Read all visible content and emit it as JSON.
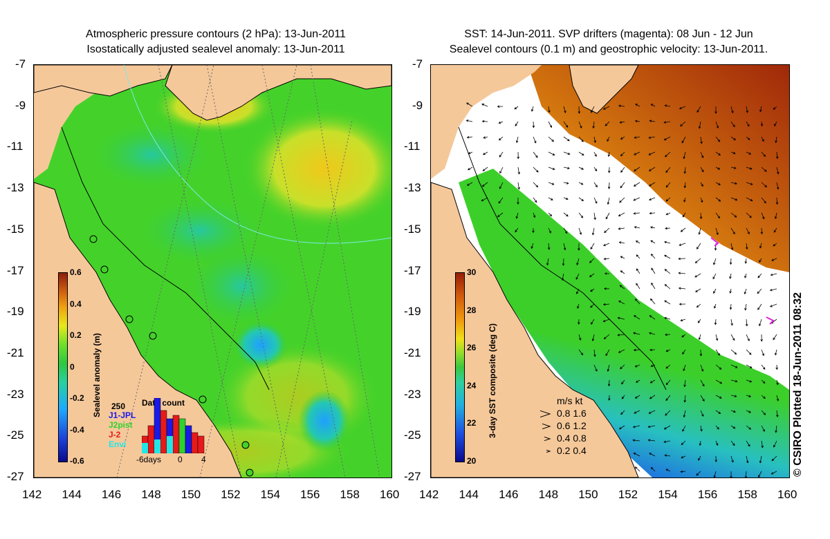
{
  "left_panel": {
    "title_line1": "Atmospheric pressure contours (2 hPa): 13-Jun-2011",
    "title_line2": "Isostatically adjusted sealevel anomaly: 13-Jun-2011",
    "colorbar": {
      "label": "Sealevel anomaly (m)",
      "ticks": [
        "0.6",
        "0.4",
        "0.2",
        "0",
        "-0.2",
        "-0.4",
        "-0.6"
      ],
      "colors": [
        "#0a0a8c",
        "#1e40d8",
        "#1eaaff",
        "#26d0a0",
        "#2ec840",
        "#6ee02a",
        "#e8e81a",
        "#f0a010",
        "#d06010",
        "#8c1e0a"
      ]
    },
    "data_count": {
      "title": "Data count",
      "max_label": "250",
      "xlabel_left": "-6days",
      "xlabel_zero": "0",
      "xlabel_right": "4",
      "legend": [
        {
          "label": "J1-JPL",
          "color": "#1a1ae6"
        },
        {
          "label": "J2pist",
          "color": "#2ed22e"
        },
        {
          "label": "J-2",
          "color": "#e61a1a"
        },
        {
          "label": "Envi",
          "color": "#22e6e6"
        }
      ]
    }
  },
  "right_panel": {
    "title_line1": "SST: 14-Jun-2011. SVP drifters (magenta): 08 Jun - 12 Jun",
    "title_line2": "Sealevel contours (0.1 m) and geostrophic velocity: 13-Jun-2011.",
    "colorbar": {
      "label": "3-day SST composite (deg C)",
      "ticks": [
        "30",
        "28",
        "26",
        "24",
        "22",
        "20"
      ],
      "colors": [
        "#0a0a8c",
        "#1e50e0",
        "#22b0e0",
        "#2ed0a0",
        "#3ac840",
        "#9ade2a",
        "#f0e01a",
        "#f09a10",
        "#d05a0c",
        "#961e0a"
      ]
    },
    "speed_key": {
      "header": "m/s   kt",
      "rows": [
        "0.8   1.6",
        "0.6   1.2",
        "0.4   0.8",
        "0.2   0.4"
      ]
    }
  },
  "axes": {
    "x_ticks": [
      "142",
      "144",
      "146",
      "148",
      "150",
      "152",
      "154",
      "156",
      "158",
      "160"
    ],
    "y_ticks": [
      "-7",
      "-9",
      "-11",
      "-13",
      "-15",
      "-17",
      "-19",
      "-21",
      "-23",
      "-25",
      "-27"
    ]
  },
  "credit": "© CSIRO Plotted 18-Jun-2011 08:32",
  "colors": {
    "land": "#f5c89a",
    "ocean_green": "#3ccf2a",
    "white_cloud": "#ffffff"
  }
}
